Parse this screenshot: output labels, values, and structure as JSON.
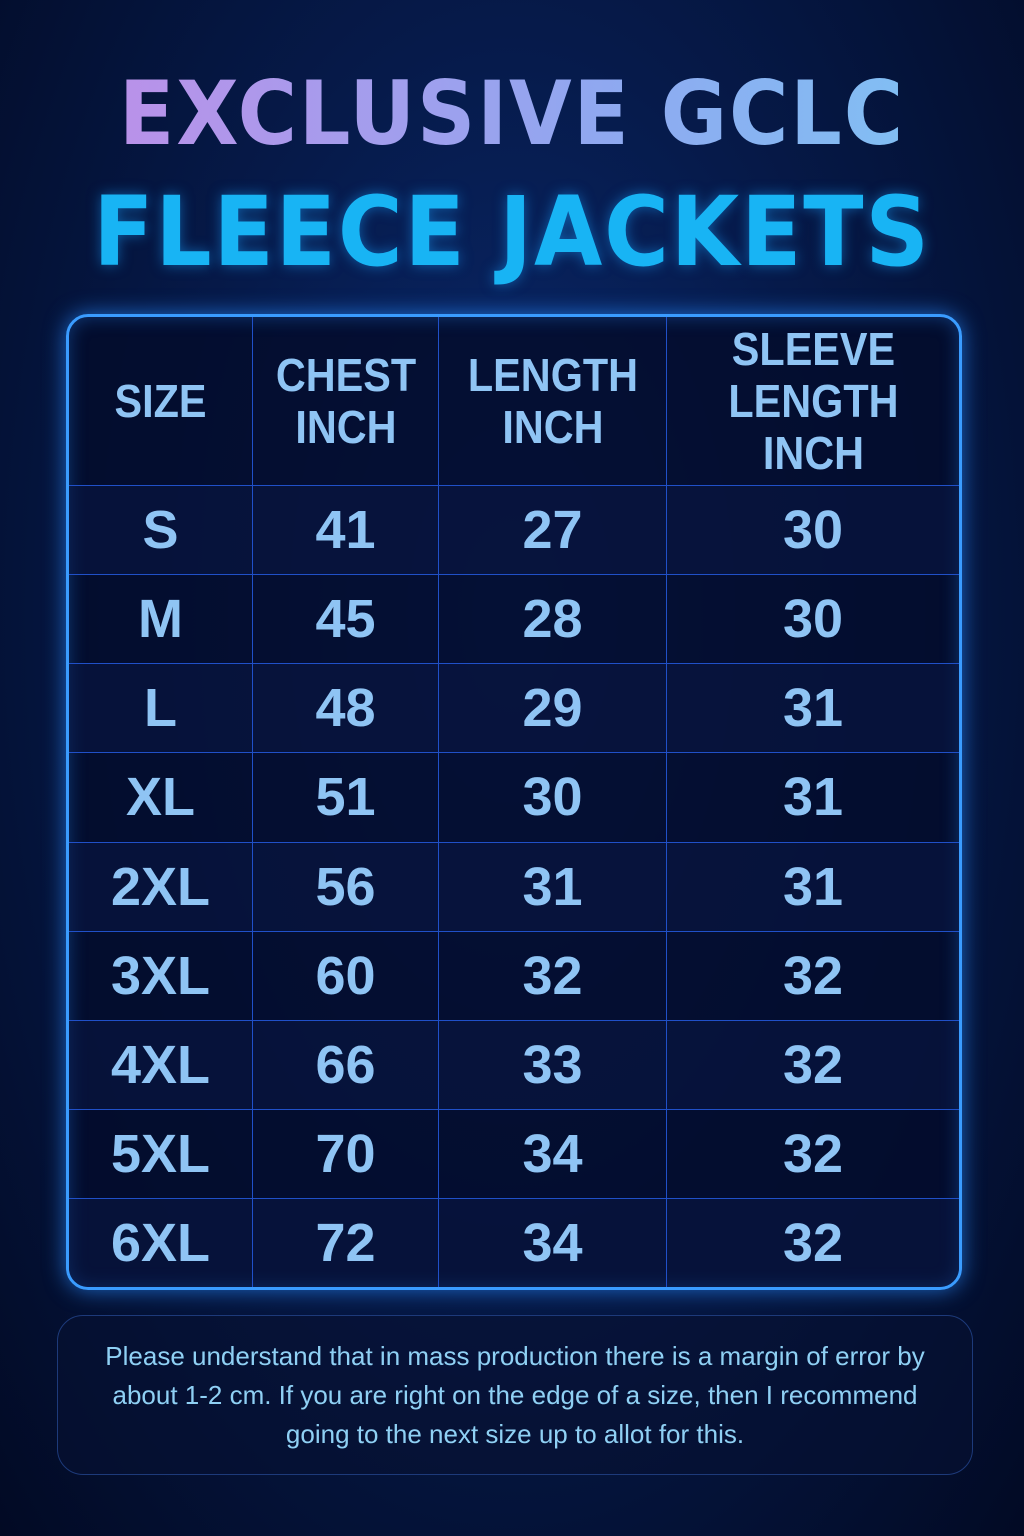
{
  "title": {
    "line1": "EXCLUSIVE GCLC",
    "line2": "FLEECE JACKETS"
  },
  "table": {
    "headers": [
      "SIZE",
      "CHEST INCH",
      "LENGTH INCH",
      "SLEEVE LENGTH INCH"
    ],
    "rows": [
      [
        "S",
        "41",
        "27",
        "30"
      ],
      [
        "M",
        "45",
        "28",
        "30"
      ],
      [
        "L",
        "48",
        "29",
        "31"
      ],
      [
        "XL",
        "51",
        "30",
        "31"
      ],
      [
        "2XL",
        "56",
        "31",
        "31"
      ],
      [
        "3XL",
        "60",
        "32",
        "32"
      ],
      [
        "4XL",
        "66",
        "33",
        "32"
      ],
      [
        "5XL",
        "70",
        "34",
        "32"
      ],
      [
        "6XL",
        "72",
        "34",
        "32"
      ]
    ]
  },
  "note": "Please understand that in mass production there is a margin of error by about 1-2 cm. If you are right on the edge of a size, then I recommend going to the next size up to allot for this.",
  "colors": {
    "title_line1": "#a79ae8",
    "title_line2": "#18b4f4",
    "table_border": "#3a9cff",
    "text": "#8fc4f4"
  }
}
